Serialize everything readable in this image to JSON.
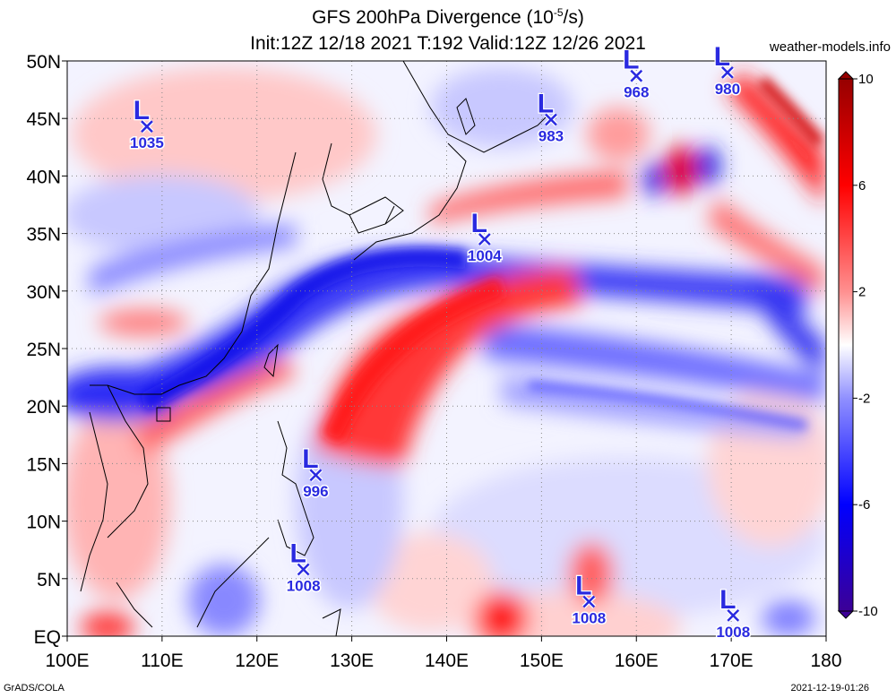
{
  "title": {
    "line1_prefix": "GFS 200hPa Divergence (10",
    "line1_exponent": "-5",
    "line1_suffix": "/s)",
    "line2": "Init:12Z 12/18 2021 T:192 Valid:12Z 12/26 2021"
  },
  "site": "weather-models.info",
  "footer": {
    "left": "GrADS/COLA",
    "right": "2021-12-19-01:26"
  },
  "map": {
    "lon_range": [
      100,
      180
    ],
    "lat_range": [
      0,
      50
    ],
    "lon_ticks": [
      {
        "value": 100,
        "label": "100E"
      },
      {
        "value": 110,
        "label": "110E"
      },
      {
        "value": 120,
        "label": "120E"
      },
      {
        "value": 130,
        "label": "130E"
      },
      {
        "value": 140,
        "label": "140E"
      },
      {
        "value": 150,
        "label": "150E"
      },
      {
        "value": 160,
        "label": "160E"
      },
      {
        "value": 170,
        "label": "170E"
      },
      {
        "value": 180,
        "label": "180"
      }
    ],
    "lat_ticks": [
      {
        "value": 0,
        "label": "EQ"
      },
      {
        "value": 5,
        "label": "5N"
      },
      {
        "value": 10,
        "label": "10N"
      },
      {
        "value": 15,
        "label": "15N"
      },
      {
        "value": 20,
        "label": "20N"
      },
      {
        "value": 25,
        "label": "25N"
      },
      {
        "value": 30,
        "label": "30N"
      },
      {
        "value": 35,
        "label": "35N"
      },
      {
        "value": 40,
        "label": "40N"
      },
      {
        "value": 45,
        "label": "45N"
      },
      {
        "value": 50,
        "label": "50N"
      }
    ],
    "grid": true
  },
  "colorbar": {
    "range": [
      -10,
      10
    ],
    "ticks": [
      {
        "value": 10,
        "label": "10"
      },
      {
        "value": 6,
        "label": "6"
      },
      {
        "value": 2,
        "label": "2"
      },
      {
        "value": -2,
        "label": "-2"
      },
      {
        "value": -6,
        "label": "-6"
      },
      {
        "value": -10,
        "label": "-10"
      }
    ],
    "colors": [
      "#3c0096",
      "#0000ff",
      "#8a8aff",
      "#ffffff",
      "#ff8a8a",
      "#ff0000",
      "#960000"
    ]
  },
  "pressure_centers": [
    {
      "letter": "L",
      "value": "1035",
      "lon": 108.4,
      "lat": 44.3
    },
    {
      "letter": "L",
      "value": "983",
      "lon": 151.0,
      "lat": 44.9
    },
    {
      "letter": "L",
      "value": "968",
      "lon": 160.0,
      "lat": 48.7
    },
    {
      "letter": "L",
      "value": "980",
      "lon": 169.6,
      "lat": 49.0
    },
    {
      "letter": "L",
      "value": "1004",
      "lon": 144.0,
      "lat": 34.5
    },
    {
      "letter": "L",
      "value": "996",
      "lon": 126.2,
      "lat": 14.0
    },
    {
      "letter": "L",
      "value": "1008",
      "lon": 124.9,
      "lat": 5.8
    },
    {
      "letter": "L",
      "value": "1008",
      "lon": 155.0,
      "lat": 3.0
    },
    {
      "letter": "L",
      "value": "1008",
      "lon": 170.2,
      "lat": 1.8
    }
  ]
}
